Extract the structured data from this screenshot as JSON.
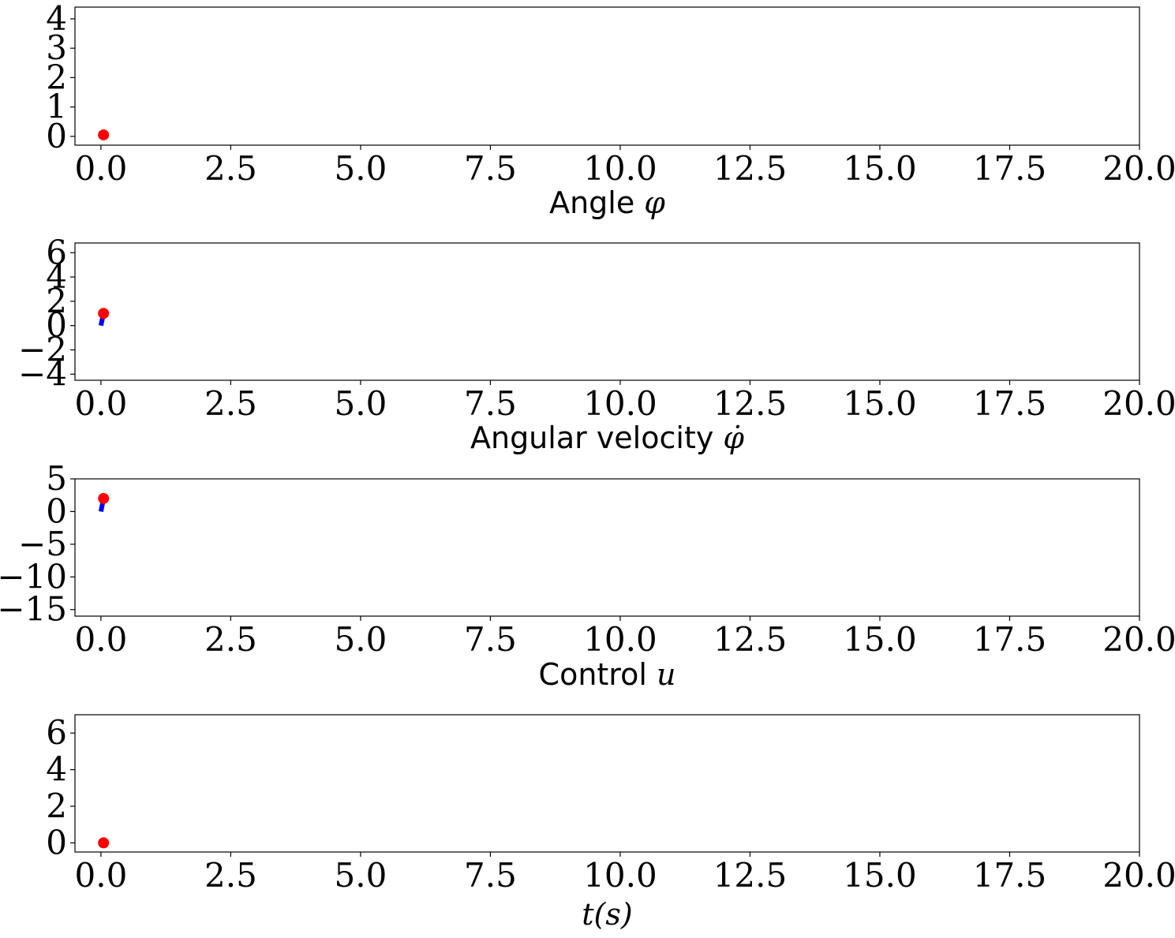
{
  "chart_data": [
    {
      "type": "line",
      "xlabel": "Angle φ",
      "xlabel_text": "Angle ",
      "xlabel_math": "φ",
      "ylabel": "",
      "xlim": [
        -0.5,
        20.0
      ],
      "ylim": [
        -0.3,
        4.4
      ],
      "xticks": [
        0.0,
        2.5,
        5.0,
        7.5,
        10.0,
        12.5,
        15.0,
        17.5,
        20.0
      ],
      "xtick_labels": [
        "0.0",
        "2.5",
        "5.0",
        "7.5",
        "10.0",
        "12.5",
        "15.0",
        "17.5",
        "20.0"
      ],
      "yticks": [
        0,
        1,
        2,
        3,
        4
      ],
      "ytick_labels": [
        "0",
        "1",
        "2",
        "3",
        "4"
      ],
      "series": [
        {
          "kind": "line",
          "color": "#0000ff",
          "x": [
            0.0,
            0.05
          ],
          "y": [
            0.0,
            0.05
          ]
        },
        {
          "kind": "marker",
          "color": "#ff0000",
          "x": [
            0.05
          ],
          "y": [
            0.05
          ]
        }
      ]
    },
    {
      "type": "line",
      "xlabel": "Angular velocity φ̇",
      "xlabel_text": "Angular velocity ",
      "xlabel_math": "φ̇",
      "ylabel": "",
      "xlim": [
        -0.5,
        20.0
      ],
      "ylim": [
        -4.5,
        6.8
      ],
      "xticks": [
        0.0,
        2.5,
        5.0,
        7.5,
        10.0,
        12.5,
        15.0,
        17.5,
        20.0
      ],
      "xtick_labels": [
        "0.0",
        "2.5",
        "5.0",
        "7.5",
        "10.0",
        "12.5",
        "15.0",
        "17.5",
        "20.0"
      ],
      "yticks": [
        -4,
        -2,
        0,
        2,
        4,
        6
      ],
      "ytick_labels": [
        "−4",
        "−2",
        "0",
        "2",
        "4",
        "6"
      ],
      "series": [
        {
          "kind": "line",
          "color": "#0000ff",
          "x": [
            0.0,
            0.05
          ],
          "y": [
            0.0,
            1.0
          ]
        },
        {
          "kind": "marker",
          "color": "#ff0000",
          "x": [
            0.05
          ],
          "y": [
            1.0
          ]
        }
      ]
    },
    {
      "type": "line",
      "xlabel": "Control u",
      "xlabel_text": "Control ",
      "xlabel_math": "u",
      "ylabel": "",
      "xlim": [
        -0.5,
        20.0
      ],
      "ylim": [
        -16.0,
        5.0
      ],
      "xticks": [
        0.0,
        2.5,
        5.0,
        7.5,
        10.0,
        12.5,
        15.0,
        17.5,
        20.0
      ],
      "xtick_labels": [
        "0.0",
        "2.5",
        "5.0",
        "7.5",
        "10.0",
        "12.5",
        "15.0",
        "17.5",
        "20.0"
      ],
      "yticks": [
        -15,
        -10,
        -5,
        0,
        5
      ],
      "ytick_labels": [
        "−15",
        "−10",
        "−5",
        "0",
        "5"
      ],
      "series": [
        {
          "kind": "line",
          "color": "#0000ff",
          "x": [
            0.0,
            0.05
          ],
          "y": [
            0.0,
            2.0
          ]
        },
        {
          "kind": "marker",
          "color": "#ff0000",
          "x": [
            0.05
          ],
          "y": [
            2.0
          ]
        }
      ]
    },
    {
      "type": "scatter",
      "xlabel": "t(s)",
      "xlabel_text": "",
      "xlabel_math": "t(s)",
      "ylabel": "",
      "xlim": [
        -0.5,
        20.0
      ],
      "ylim": [
        -0.5,
        7.0
      ],
      "xticks": [
        0.0,
        2.5,
        5.0,
        7.5,
        10.0,
        12.5,
        15.0,
        17.5,
        20.0
      ],
      "xtick_labels": [
        "0.0",
        "2.5",
        "5.0",
        "7.5",
        "10.0",
        "12.5",
        "15.0",
        "17.5",
        "20.0"
      ],
      "yticks": [
        0,
        2,
        4,
        6
      ],
      "ytick_labels": [
        "0",
        "2",
        "4",
        "6"
      ],
      "series": [
        {
          "kind": "marker",
          "color": "#ff0000",
          "x": [
            0.05
          ],
          "y": [
            0.0
          ]
        }
      ]
    }
  ]
}
